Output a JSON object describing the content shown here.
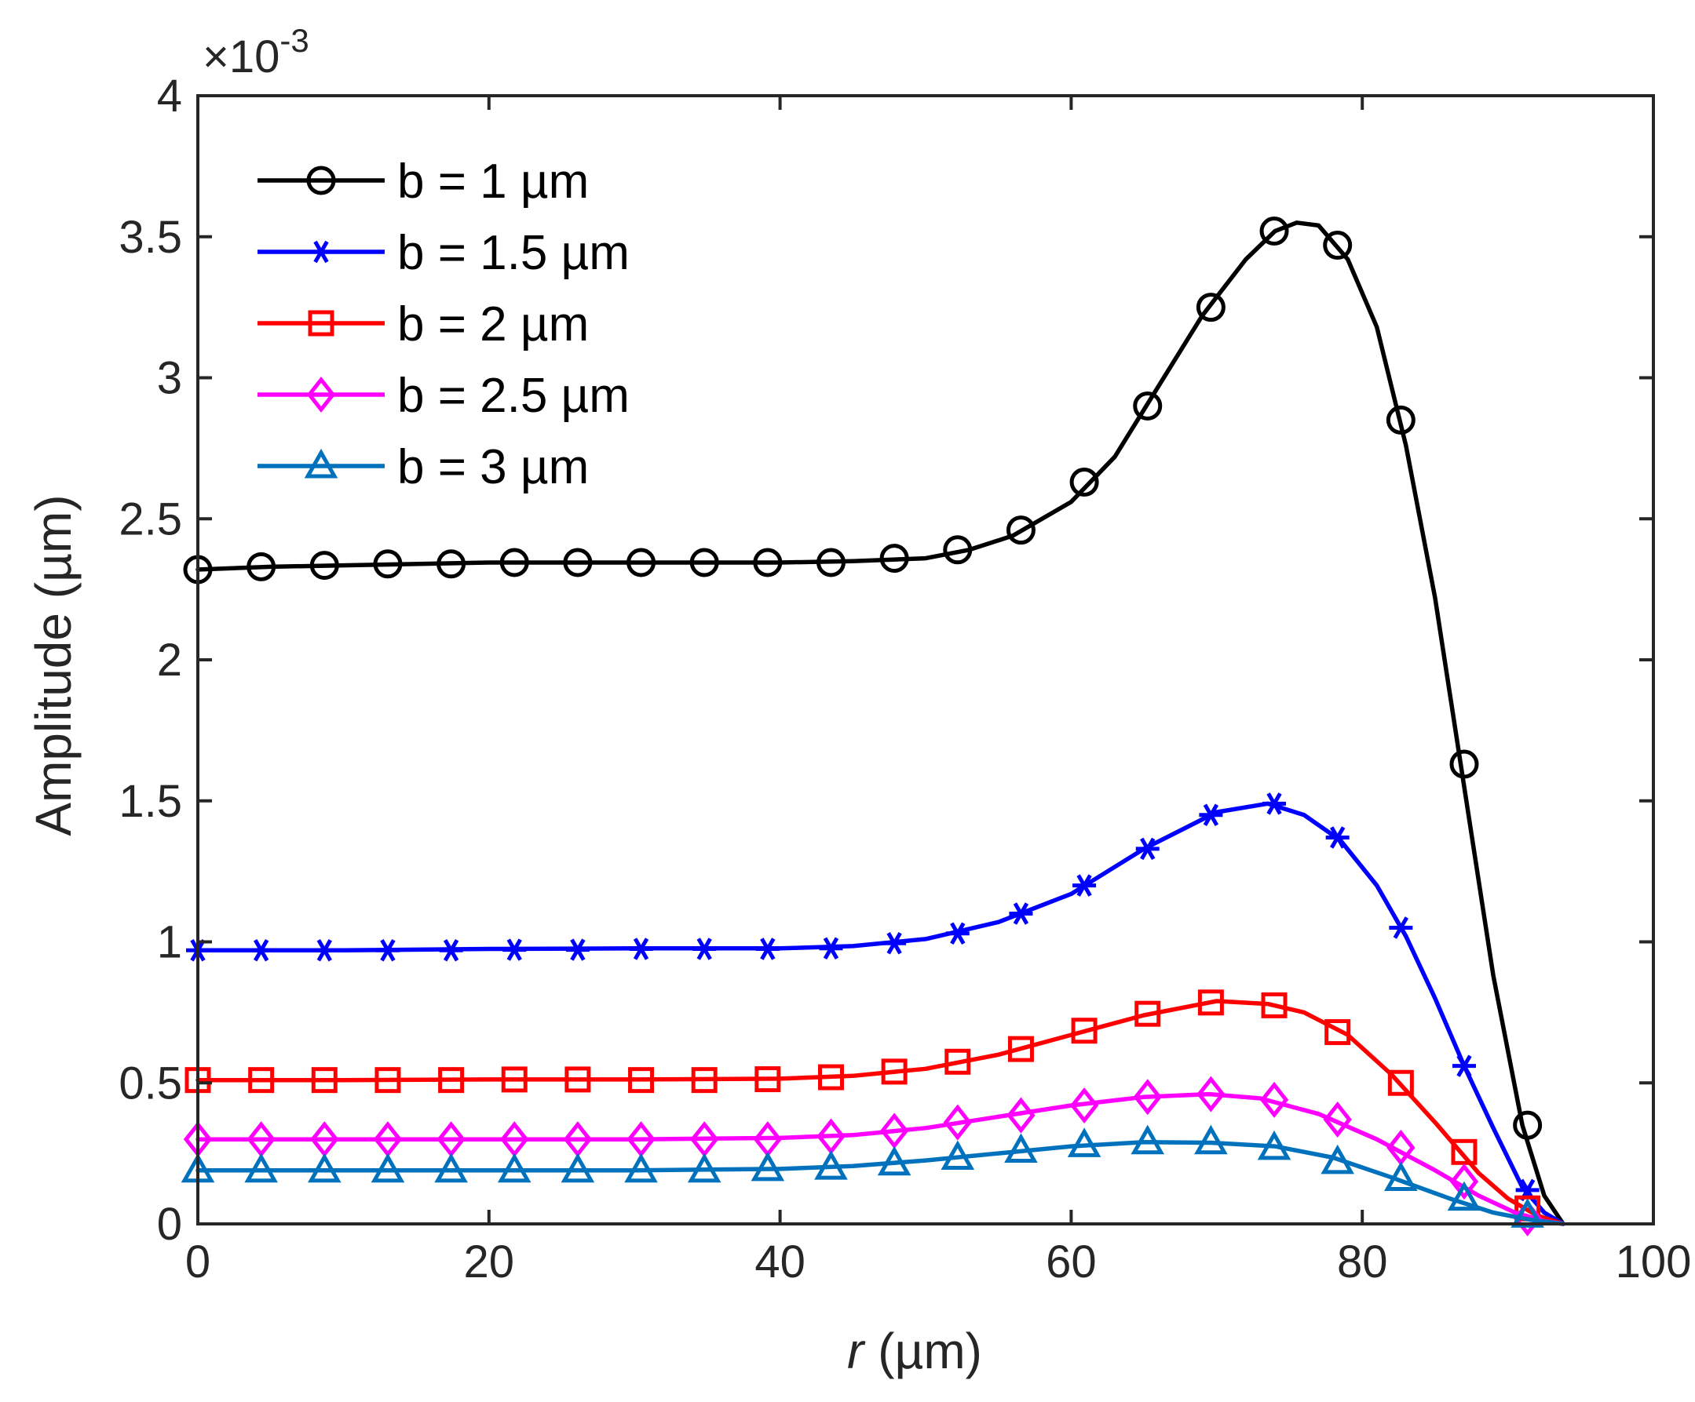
{
  "chart_data": {
    "type": "line",
    "xlabel_italic": "r",
    "xlabel_rest": " (µm)",
    "ylabel": "Amplitude (µm)",
    "xlim": [
      0,
      100
    ],
    "ylim": [
      0,
      4
    ],
    "x_ticks": [
      0,
      20,
      40,
      60,
      80,
      100
    ],
    "y_ticks": [
      0,
      0.5,
      1,
      1.5,
      2,
      2.5,
      3,
      3.5,
      4
    ],
    "x_tick_labels": [
      "0",
      "20",
      "40",
      "60",
      "80",
      "100"
    ],
    "y_tick_labels": [
      "0",
      "0.5",
      "1",
      "1.5",
      "2",
      "2.5",
      "3",
      "3.5",
      "4"
    ],
    "y_scale_times": "×10",
    "y_scale_exponent": "-3",
    "grid": false,
    "legend_position": "top-left",
    "marker_x": [
      0,
      4.35,
      8.7,
      13.05,
      17.4,
      21.75,
      26.1,
      30.45,
      34.8,
      39.15,
      43.5,
      47.85,
      52.2,
      56.55,
      60.9,
      65.25,
      69.6,
      73.95,
      78.3,
      82.65,
      87.0,
      91.35
    ],
    "series": [
      {
        "name": "b = 1 µm",
        "color": "#000000",
        "marker": "circle",
        "curve": [
          [
            0,
            2.32
          ],
          [
            5,
            2.33
          ],
          [
            10,
            2.335
          ],
          [
            20,
            2.345
          ],
          [
            30,
            2.345
          ],
          [
            40,
            2.345
          ],
          [
            45,
            2.35
          ],
          [
            50,
            2.36
          ],
          [
            53,
            2.39
          ],
          [
            56,
            2.44
          ],
          [
            60,
            2.56
          ],
          [
            63,
            2.72
          ],
          [
            66,
            2.97
          ],
          [
            69,
            3.22
          ],
          [
            72,
            3.42
          ],
          [
            74,
            3.52
          ],
          [
            75.5,
            3.55
          ],
          [
            77,
            3.54
          ],
          [
            79,
            3.42
          ],
          [
            81,
            3.18
          ],
          [
            83,
            2.76
          ],
          [
            85,
            2.22
          ],
          [
            87,
            1.55
          ],
          [
            89,
            0.88
          ],
          [
            91,
            0.35
          ],
          [
            92.5,
            0.1
          ],
          [
            93.8,
            0
          ]
        ],
        "values": [
          2.32,
          2.33,
          2.335,
          2.34,
          2.34,
          2.345,
          2.345,
          2.345,
          2.345,
          2.345,
          2.345,
          2.36,
          2.39,
          2.46,
          2.63,
          2.9,
          3.25,
          3.52,
          3.47,
          2.85,
          1.63,
          0.35
        ]
      },
      {
        "name": "b = 1.5 µm",
        "color": "#0000ff",
        "marker": "asterisk",
        "curve": [
          [
            0,
            0.97
          ],
          [
            10,
            0.97
          ],
          [
            20,
            0.975
          ],
          [
            30,
            0.977
          ],
          [
            40,
            0.977
          ],
          [
            45,
            0.985
          ],
          [
            50,
            1.01
          ],
          [
            55,
            1.07
          ],
          [
            60,
            1.17
          ],
          [
            65,
            1.33
          ],
          [
            70,
            1.46
          ],
          [
            73.5,
            1.49
          ],
          [
            76,
            1.45
          ],
          [
            78.5,
            1.36
          ],
          [
            81,
            1.2
          ],
          [
            83,
            1.02
          ],
          [
            85,
            0.8
          ],
          [
            87,
            0.56
          ],
          [
            89,
            0.34
          ],
          [
            91,
            0.13
          ],
          [
            92.5,
            0.04
          ],
          [
            93.8,
            0
          ]
        ],
        "values": [
          0.97,
          0.97,
          0.97,
          0.97,
          0.97,
          0.972,
          0.972,
          0.975,
          0.975,
          0.975,
          0.977,
          0.995,
          1.03,
          1.1,
          1.2,
          1.33,
          1.45,
          1.49,
          1.37,
          1.05,
          0.56,
          0.12
        ]
      },
      {
        "name": "b = 2 µm",
        "color": "#ff0000",
        "marker": "square",
        "curve": [
          [
            0,
            0.51
          ],
          [
            10,
            0.51
          ],
          [
            20,
            0.512
          ],
          [
            30,
            0.512
          ],
          [
            40,
            0.515
          ],
          [
            45,
            0.525
          ],
          [
            50,
            0.55
          ],
          [
            55,
            0.6
          ],
          [
            60,
            0.67
          ],
          [
            65,
            0.74
          ],
          [
            70,
            0.79
          ],
          [
            73.5,
            0.78
          ],
          [
            76,
            0.75
          ],
          [
            79,
            0.67
          ],
          [
            82,
            0.53
          ],
          [
            85,
            0.36
          ],
          [
            88,
            0.18
          ],
          [
            90,
            0.09
          ],
          [
            92,
            0.03
          ],
          [
            93.8,
            0
          ]
        ],
        "values": [
          0.51,
          0.51,
          0.51,
          0.51,
          0.51,
          0.512,
          0.512,
          0.51,
          0.51,
          0.513,
          0.52,
          0.54,
          0.575,
          0.62,
          0.685,
          0.745,
          0.785,
          0.775,
          0.68,
          0.5,
          0.255,
          0.055
        ]
      },
      {
        "name": "b = 2.5 µm",
        "color": "#ff00ff",
        "marker": "diamond",
        "curve": [
          [
            0,
            0.3
          ],
          [
            10,
            0.3
          ],
          [
            20,
            0.3
          ],
          [
            30,
            0.3
          ],
          [
            40,
            0.305
          ],
          [
            45,
            0.315
          ],
          [
            50,
            0.34
          ],
          [
            55,
            0.38
          ],
          [
            60,
            0.42
          ],
          [
            65,
            0.45
          ],
          [
            69.5,
            0.46
          ],
          [
            73,
            0.445
          ],
          [
            77,
            0.39
          ],
          [
            81,
            0.3
          ],
          [
            85,
            0.19
          ],
          [
            88,
            0.1
          ],
          [
            90.5,
            0.04
          ],
          [
            92.5,
            0.01
          ],
          [
            93.8,
            0
          ]
        ],
        "values": [
          0.3,
          0.3,
          0.3,
          0.3,
          0.3,
          0.3,
          0.3,
          0.3,
          0.3,
          0.3,
          0.31,
          0.33,
          0.36,
          0.385,
          0.42,
          0.45,
          0.46,
          0.44,
          0.37,
          0.27,
          0.15,
          0.02
        ]
      },
      {
        "name": "b = 3 µm",
        "color": "#0072bd",
        "marker": "triangle",
        "curve": [
          [
            0,
            0.19
          ],
          [
            10,
            0.19
          ],
          [
            20,
            0.19
          ],
          [
            30,
            0.19
          ],
          [
            40,
            0.195
          ],
          [
            45,
            0.205
          ],
          [
            50,
            0.225
          ],
          [
            55,
            0.25
          ],
          [
            60,
            0.275
          ],
          [
            65,
            0.29
          ],
          [
            69.6,
            0.288
          ],
          [
            74,
            0.275
          ],
          [
            78,
            0.235
          ],
          [
            82,
            0.165
          ],
          [
            86,
            0.09
          ],
          [
            89,
            0.04
          ],
          [
            91.5,
            0.015
          ],
          [
            93.8,
            0
          ]
        ],
        "values": [
          0.19,
          0.19,
          0.19,
          0.19,
          0.19,
          0.19,
          0.19,
          0.19,
          0.19,
          0.195,
          0.2,
          0.215,
          0.235,
          0.26,
          0.28,
          0.29,
          0.29,
          0.27,
          0.22,
          0.16,
          0.09,
          0.03
        ]
      }
    ]
  }
}
